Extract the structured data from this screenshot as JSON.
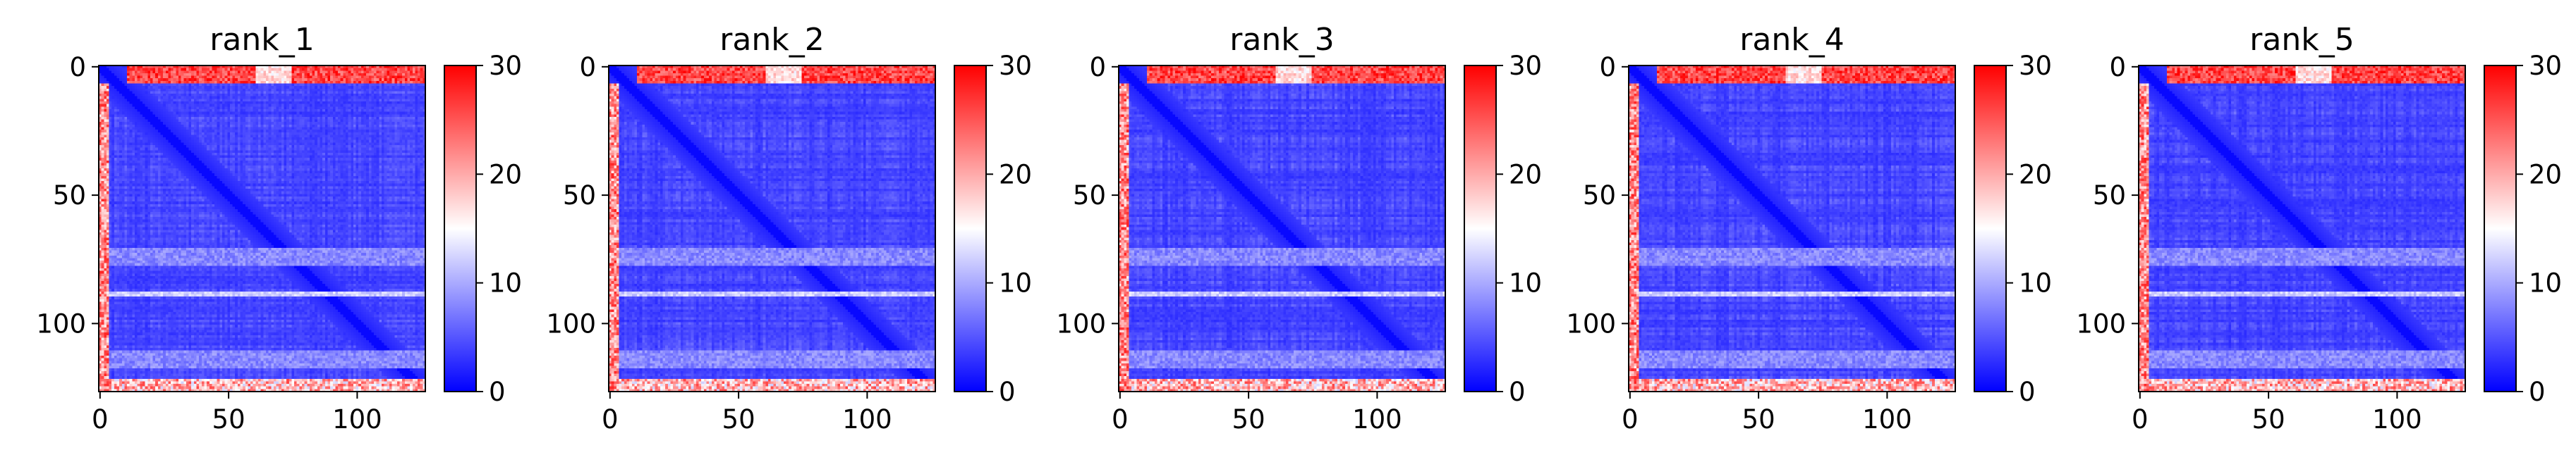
{
  "chart_data": [
    {
      "type": "heatmap",
      "title": "rank_1",
      "x_ticks": [
        0,
        50,
        100
      ],
      "y_ticks": [
        0,
        50,
        100
      ],
      "colorbar": {
        "ticks": [
          0,
          10,
          20,
          30
        ],
        "range": [
          0,
          30
        ],
        "colormap": "bwr"
      },
      "size": 127
    },
    {
      "type": "heatmap",
      "title": "rank_2",
      "x_ticks": [
        0,
        50,
        100
      ],
      "y_ticks": [
        0,
        50,
        100
      ],
      "colorbar": {
        "ticks": [
          0,
          10,
          20,
          30
        ],
        "range": [
          0,
          30
        ],
        "colormap": "bwr"
      },
      "size": 127
    },
    {
      "type": "heatmap",
      "title": "rank_3",
      "x_ticks": [
        0,
        50,
        100
      ],
      "y_ticks": [
        0,
        50,
        100
      ],
      "colorbar": {
        "ticks": [
          0,
          10,
          20,
          30
        ],
        "range": [
          0,
          30
        ],
        "colormap": "bwr"
      },
      "size": 127
    },
    {
      "type": "heatmap",
      "title": "rank_4",
      "x_ticks": [
        0,
        50,
        100
      ],
      "y_ticks": [
        0,
        50,
        100
      ],
      "colorbar": {
        "ticks": [
          0,
          10,
          20,
          30
        ],
        "range": [
          0,
          30
        ],
        "colormap": "bwr"
      },
      "size": 127
    },
    {
      "type": "heatmap",
      "title": "rank_5",
      "x_ticks": [
        0,
        50,
        100
      ],
      "y_ticks": [
        0,
        50,
        100
      ],
      "colorbar": {
        "ticks": [
          0,
          10,
          20,
          30
        ],
        "range": [
          0,
          30
        ],
        "colormap": "bwr"
      },
      "size": 127
    }
  ],
  "colors": {
    "low": "#0000ff",
    "mid": "#ffffff",
    "high": "#ff0000"
  }
}
